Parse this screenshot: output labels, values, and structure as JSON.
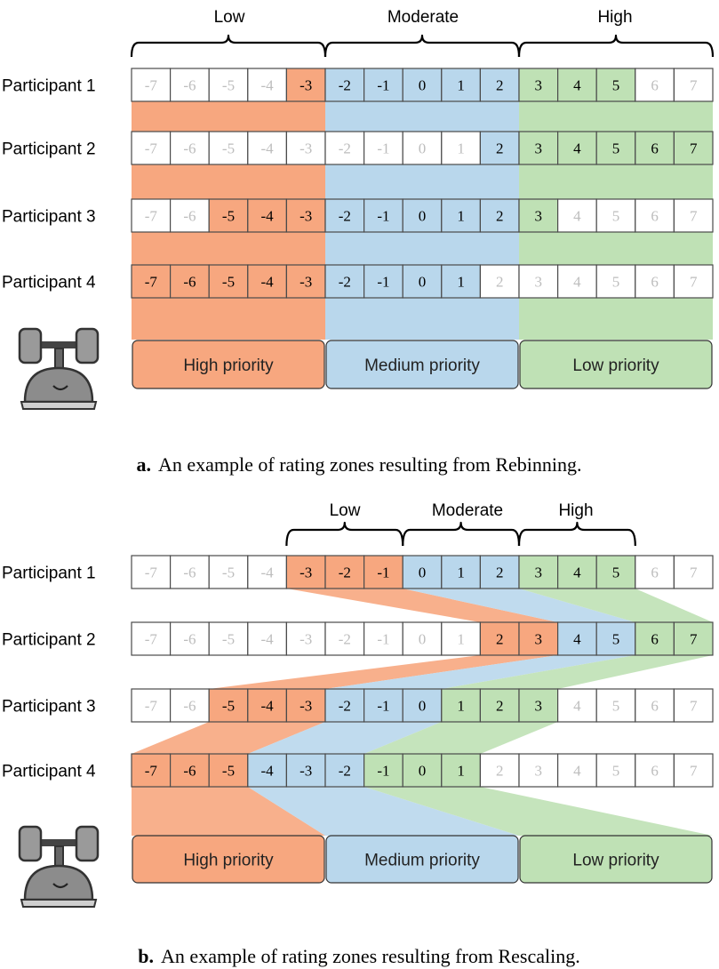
{
  "colors": {
    "orange": "#f7a77f",
    "blue": "#b9d7ec",
    "green": "#bfe1b5",
    "cell_border": "#4a4a4a",
    "inactive_text": "#bdbdbd",
    "active_text": "#000000",
    "robot_body": "#8c8c8c"
  },
  "scale_values": [
    "-7",
    "-6",
    "-5",
    "-4",
    "-3",
    "-2",
    "-1",
    "0",
    "1",
    "2",
    "3",
    "4",
    "5",
    "6",
    "7"
  ],
  "panels": [
    {
      "id": "a",
      "zone_labels": [
        "Low",
        "Moderate",
        "High"
      ],
      "participants": [
        {
          "label": "Participant 1",
          "active": {
            "orange": [
              -3,
              -3
            ],
            "blue": [
              -2,
              2
            ],
            "green": [
              3,
              5
            ]
          }
        },
        {
          "label": "Participant 2",
          "active": {
            "blue": [
              2,
              2
            ],
            "green": [
              3,
              7
            ]
          }
        },
        {
          "label": "Participant 3",
          "active": {
            "orange": [
              -5,
              -3
            ],
            "blue": [
              -2,
              2
            ],
            "green": [
              3,
              3
            ]
          }
        },
        {
          "label": "Participant 4",
          "active": {
            "orange": [
              -7,
              -3
            ],
            "blue": [
              -2,
              1
            ]
          }
        }
      ],
      "priority_labels": [
        "High priority",
        "Medium priority",
        "Low priority"
      ],
      "caption_prefix": "a.",
      "caption_text": "An example of rating zones resulting from Rebinning."
    },
    {
      "id": "b",
      "zone_labels": [
        "Low",
        "Moderate",
        "High"
      ],
      "participants": [
        {
          "label": "Participant 1",
          "active": {
            "orange": [
              -3,
              -1
            ],
            "blue": [
              0,
              2
            ],
            "green": [
              3,
              5
            ]
          }
        },
        {
          "label": "Participant 2",
          "active": {
            "orange": [
              2,
              3
            ],
            "blue": [
              4,
              5
            ],
            "green": [
              6,
              7
            ]
          }
        },
        {
          "label": "Participant 3",
          "active": {
            "orange": [
              -5,
              -3
            ],
            "blue": [
              -2,
              0
            ],
            "green": [
              1,
              3
            ]
          }
        },
        {
          "label": "Participant 4",
          "active": {
            "orange": [
              -7,
              -5
            ],
            "blue": [
              -4,
              -2
            ],
            "green": [
              -1,
              1
            ]
          }
        }
      ],
      "priority_labels": [
        "High priority",
        "Medium priority",
        "Low priority"
      ],
      "caption_prefix": "b.",
      "caption_text": "An example of rating zones resulting from Rescaling."
    }
  ]
}
